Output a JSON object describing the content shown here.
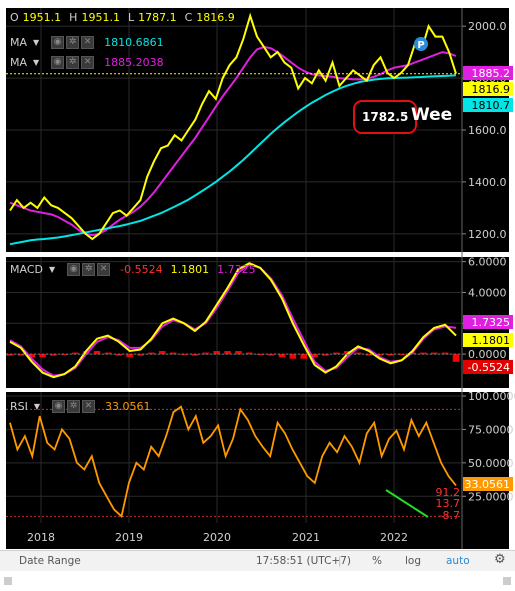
{
  "ohlc": {
    "o_label": "O",
    "o": "1951.1",
    "h_label": "H",
    "h": "1951.1",
    "l_label": "L",
    "l": "1787.1",
    "c_label": "C",
    "c": "1816.9"
  },
  "ma1": {
    "label": "MA",
    "value": "1810.6861"
  },
  "ma2": {
    "label": "MA",
    "value": "1885.2038"
  },
  "macd": {
    "label": "MACD",
    "v1": "-0.5524",
    "v2": "1.1801",
    "v3": "1.7325"
  },
  "rsi": {
    "label": "RSI",
    "value": "33.0561"
  },
  "annotations": {
    "week_text": "Wee",
    "box_value": "1782.5",
    "p_badge": "P"
  },
  "price_tags": {
    "ma2": "1885.2",
    "close": "1816.9",
    "ma1": "1810.7"
  },
  "macd_tags": {
    "signal": "1.7325",
    "macd": "1.1801",
    "hist": "-0.5524"
  },
  "rsi_tags": {
    "rsi": "33.0561",
    "r1": "91.2",
    "r2": "13.7",
    "r3": "-8.7"
  },
  "footer": {
    "date_range": "Date Range",
    "time": "17:58:51 (UTC+7)",
    "pct": "%",
    "log": "log",
    "auto": "auto"
  },
  "colors": {
    "price": "#ffff00",
    "ma1": "#00e5e5",
    "ma2": "#e020e0",
    "rsi": "#ff9900",
    "hist": "#ff0000",
    "bg": "#000000"
  },
  "chart_data": [
    {
      "type": "line",
      "title": "",
      "x_ticks": [
        "2018",
        "2019",
        "2020",
        "2021",
        "2022"
      ],
      "y_ticks": [
        1200,
        1400,
        1600,
        1800,
        2000
      ],
      "ylim": [
        1130,
        2070
      ],
      "series": [
        {
          "name": "Price",
          "values": [
            1290,
            1330,
            1300,
            1320,
            1300,
            1340,
            1310,
            1300,
            1280,
            1260,
            1230,
            1200,
            1180,
            1200,
            1240,
            1280,
            1290,
            1270,
            1300,
            1330,
            1420,
            1480,
            1530,
            1540,
            1580,
            1560,
            1600,
            1640,
            1700,
            1750,
            1720,
            1800,
            1850,
            1880,
            1950,
            2040,
            1960,
            1920,
            1880,
            1900,
            1860,
            1840,
            1760,
            1800,
            1780,
            1830,
            1790,
            1860,
            1770,
            1800,
            1830,
            1810,
            1790,
            1850,
            1880,
            1820,
            1800,
            1820,
            1850,
            1930,
            1910,
            2000,
            1960,
            1960,
            1900,
            1816.9
          ]
        },
        {
          "name": "MA 1810.6861",
          "values": [
            1160,
            1165,
            1170,
            1175,
            1178,
            1180,
            1183,
            1186,
            1190,
            1195,
            1200,
            1205,
            1210,
            1215,
            1220,
            1225,
            1230,
            1236,
            1243,
            1250,
            1260,
            1270,
            1280,
            1292,
            1305,
            1318,
            1332,
            1348,
            1365,
            1382,
            1400,
            1420,
            1440,
            1462,
            1485,
            1510,
            1535,
            1560,
            1585,
            1608,
            1630,
            1650,
            1670,
            1688,
            1705,
            1720,
            1735,
            1748,
            1760,
            1770,
            1778,
            1785,
            1790,
            1794,
            1797,
            1799,
            1800,
            1801,
            1802,
            1803,
            1804,
            1806,
            1807,
            1808,
            1809,
            1810.7
          ]
        },
        {
          "name": "MA 1885.2038",
          "values": [
            1320,
            1310,
            1300,
            1290,
            1285,
            1280,
            1275,
            1265,
            1250,
            1235,
            1215,
            1200,
            1195,
            1200,
            1215,
            1235,
            1255,
            1270,
            1285,
            1305,
            1330,
            1360,
            1395,
            1430,
            1465,
            1500,
            1535,
            1570,
            1610,
            1650,
            1690,
            1730,
            1765,
            1800,
            1840,
            1880,
            1910,
            1920,
            1915,
            1900,
            1880,
            1860,
            1840,
            1825,
            1815,
            1810,
            1808,
            1805,
            1800,
            1798,
            1795,
            1795,
            1798,
            1805,
            1815,
            1830,
            1840,
            1845,
            1850,
            1860,
            1870,
            1880,
            1890,
            1900,
            1895,
            1885.2
          ]
        }
      ]
    },
    {
      "type": "line",
      "title": "",
      "y_ticks": [
        0,
        2,
        4,
        6
      ],
      "ylim": [
        -2.2,
        6.3
      ],
      "series": [
        {
          "name": "MACD",
          "values": [
            0.8,
            0.4,
            -0.5,
            -1.2,
            -1.5,
            -1.3,
            -0.8,
            0.2,
            1.0,
            1.2,
            0.8,
            0.2,
            0.3,
            1.0,
            2.0,
            2.3,
            2.0,
            1.5,
            2.1,
            3.2,
            4.3,
            5.5,
            5.9,
            5.6,
            4.8,
            3.6,
            2.0,
            0.6,
            -0.7,
            -1.2,
            -0.8,
            0.0,
            0.5,
            0.2,
            -0.3,
            -0.6,
            -0.4,
            0.2,
            1.1,
            1.7,
            1.9,
            1.2
          ]
        },
        {
          "name": "Signal",
          "values": [
            0.9,
            0.5,
            -0.3,
            -1.0,
            -1.4,
            -1.3,
            -0.9,
            0.0,
            0.8,
            1.1,
            0.9,
            0.4,
            0.4,
            0.9,
            1.8,
            2.2,
            2.0,
            1.6,
            2.0,
            3.0,
            4.1,
            5.3,
            5.8,
            5.6,
            4.9,
            3.8,
            2.3,
            0.9,
            -0.5,
            -1.1,
            -0.9,
            -0.2,
            0.4,
            0.3,
            -0.2,
            -0.5,
            -0.4,
            0.1,
            1.0,
            1.6,
            1.8,
            1.7
          ]
        },
        {
          "name": "Histogram",
          "values": [
            -0.1,
            -0.1,
            -0.2,
            -0.2,
            -0.1,
            0.0,
            0.1,
            0.2,
            0.2,
            0.1,
            -0.1,
            -0.2,
            -0.1,
            0.1,
            0.2,
            0.1,
            0.0,
            -0.1,
            0.1,
            0.2,
            0.2,
            0.2,
            0.1,
            0.0,
            -0.1,
            -0.2,
            -0.3,
            -0.3,
            -0.2,
            -0.1,
            0.1,
            0.2,
            0.1,
            -0.1,
            -0.1,
            -0.1,
            0.0,
            0.1,
            0.1,
            0.1,
            0.1,
            -0.5
          ]
        }
      ]
    },
    {
      "type": "line",
      "title": "",
      "y_ticks": [
        25,
        50,
        75,
        100
      ],
      "ylim": [
        5,
        103
      ],
      "series": [
        {
          "name": "RSI",
          "values": [
            80,
            60,
            70,
            55,
            85,
            65,
            60,
            75,
            68,
            50,
            45,
            55,
            35,
            25,
            15,
            10,
            35,
            50,
            45,
            62,
            55,
            70,
            88,
            92,
            75,
            85,
            65,
            70,
            78,
            55,
            68,
            90,
            82,
            70,
            62,
            55,
            80,
            72,
            60,
            50,
            40,
            35,
            55,
            65,
            58,
            70,
            62,
            50,
            72,
            80,
            55,
            68,
            74,
            60,
            82,
            70,
            80,
            65,
            50,
            40,
            33.0561
          ]
        },
        {
          "name": "Trendline",
          "values": [
            null
          ]
        }
      ]
    }
  ]
}
